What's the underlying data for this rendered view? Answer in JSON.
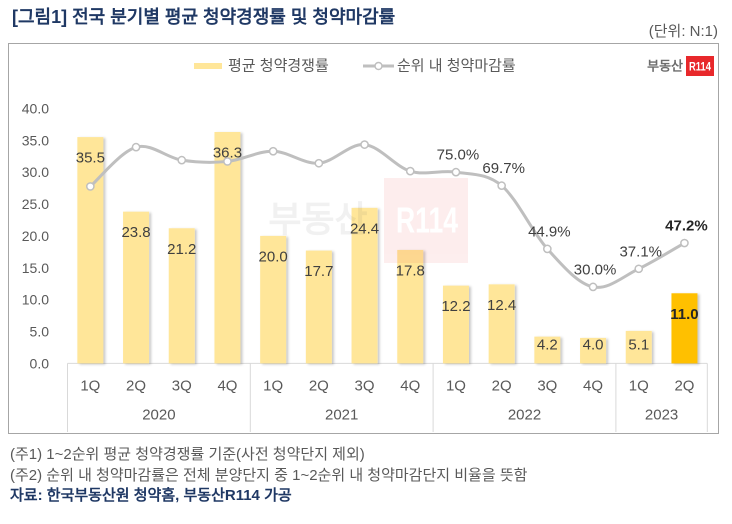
{
  "title": "[그림1] 전국 분기별 평균 청약경쟁률 및 청약마감률",
  "unit_note": "(단위: N:1)",
  "logo": {
    "text": "부동산",
    "badge": "R114"
  },
  "watermark": {
    "text": "부동산",
    "badge": "R114"
  },
  "legend": [
    {
      "label": "평균 청약경쟁률",
      "marker": "bar"
    },
    {
      "label": "순위 내 청약마감률",
      "marker": "line-with-circle"
    }
  ],
  "footnotes": [
    "(주1) 1~2순위 평균 청약경쟁률 기준(사전 청약단지 제외)",
    "(주2) 순위 내 청약마감률은 전체 분양단지 중 1~2순위 내 청약마감단지 비율을 뜻함"
  ],
  "source": "자료: 한국부동산원 청약홈, 부동산R114 가공",
  "colors": {
    "title": "#1F3864",
    "bar": "#FFE699",
    "bar_highlight": "#FFC000",
    "line": "#BFBFBF",
    "brand_red": "#E8282B",
    "axis_text": "#595959",
    "axis_line": "#D9D9D9"
  },
  "chart_data": {
    "type": "bar",
    "combo": "bar+line",
    "title": "[그림1] 전국 분기별 평균 청약경쟁률 및 청약마감률",
    "xlabel": "",
    "ylabel": "",
    "unit": "N:1",
    "categories": [
      "1Q",
      "2Q",
      "3Q",
      "4Q",
      "1Q",
      "2Q",
      "3Q",
      "4Q",
      "1Q",
      "2Q",
      "3Q",
      "4Q",
      "1Q",
      "2Q"
    ],
    "groups": [
      {
        "label": "2020",
        "count": 4
      },
      {
        "label": "2021",
        "count": 4
      },
      {
        "label": "2022",
        "count": 4
      },
      {
        "label": "2023",
        "count": 2
      }
    ],
    "series": [
      {
        "name": "평균 청약경쟁률",
        "type": "bar",
        "axis": "primary",
        "values": [
          35.5,
          23.8,
          21.2,
          36.3,
          20.0,
          17.7,
          24.4,
          17.8,
          12.2,
          12.4,
          4.2,
          4.0,
          5.1,
          11.0
        ],
        "labels": [
          "35.5",
          "23.8",
          "21.2",
          "36.3",
          "20.0",
          "17.7",
          "24.4",
          "17.8",
          "12.2",
          "12.4",
          "4.2",
          "4.0",
          "5.1",
          "11.0"
        ],
        "highlight_index": 13
      },
      {
        "name": "순위 내 청약마감률",
        "type": "line",
        "axis": "secondary",
        "unit": "%",
        "smooth": true,
        "values": [
          69.4,
          84.8,
          79.7,
          79.2,
          83.2,
          78.5,
          85.8,
          75.4,
          75.0,
          69.7,
          44.9,
          30.0,
          37.1,
          47.2
        ],
        "labels": [
          null,
          null,
          null,
          null,
          null,
          null,
          null,
          null,
          "75.0%",
          "69.7%",
          "44.9%",
          "30.0%",
          "37.1%",
          "47.2%"
        ],
        "highlight_index": 13
      }
    ],
    "y_axis": {
      "range": [
        0,
        40
      ],
      "ticks": [
        0,
        5,
        10,
        15,
        20,
        25,
        30,
        35,
        40
      ],
      "tick_labels": [
        "0.0",
        "5.0",
        "10.0",
        "15.0",
        "20.0",
        "25.0",
        "30.0",
        "35.0",
        "40.0"
      ]
    },
    "y2_axis": {
      "range": [
        0,
        100
      ],
      "visible": false
    },
    "grid": false,
    "legend_position": "top"
  }
}
